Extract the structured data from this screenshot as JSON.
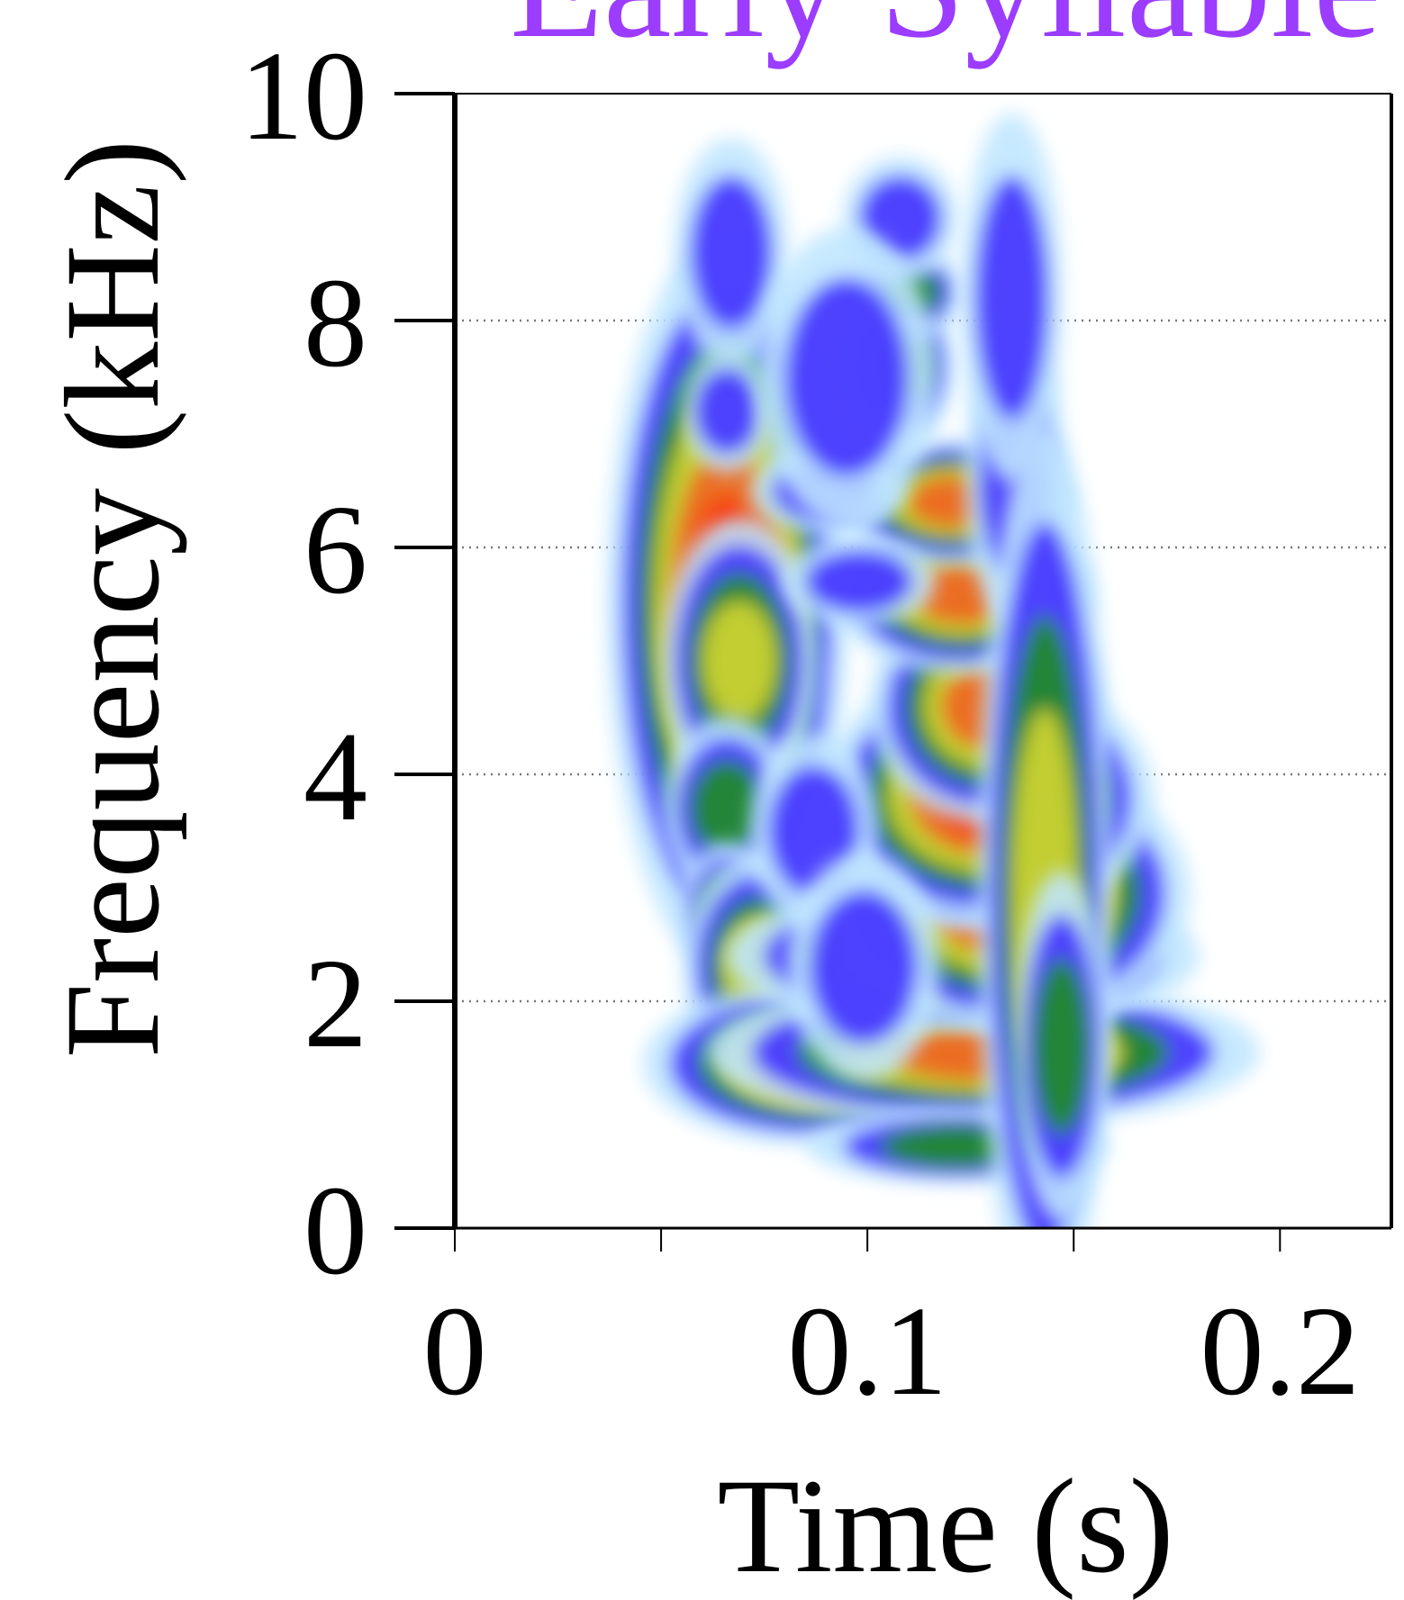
{
  "chart_data": {
    "type": "heatmap",
    "title": "Early Syllable",
    "title_color": "#9b3cff",
    "xlabel": "Time (s)",
    "ylabel": "Frequency (kHz)",
    "xlim": [
      0,
      0.227
    ],
    "ylim": [
      0,
      10
    ],
    "x_ticks": [
      {
        "value": 0,
        "label": "0"
      },
      {
        "value": 0.05,
        "label": ""
      },
      {
        "value": 0.1,
        "label": "0.1"
      },
      {
        "value": 0.15,
        "label": ""
      },
      {
        "value": 0.2,
        "label": "0.2"
      }
    ],
    "y_ticks": [
      {
        "value": 0,
        "label": "0"
      },
      {
        "value": 2,
        "label": "2"
      },
      {
        "value": 4,
        "label": "4"
      },
      {
        "value": 6,
        "label": "6"
      },
      {
        "value": 8,
        "label": "8"
      },
      {
        "value": 10,
        "label": "10"
      }
    ],
    "grid": {
      "y": true,
      "x": false,
      "style": "dotted"
    },
    "colormap": [
      "#ffffff",
      "#bfe6ff",
      "#3d2bff",
      "#1e8f1e",
      "#d8d830",
      "#f06020",
      "#ff2000"
    ],
    "blobs": [
      {
        "t": 0.066,
        "f": 5.5,
        "dt": 0.007,
        "df": 0.85,
        "i": 0.95
      },
      {
        "t": 0.069,
        "f": 5.0,
        "dt": 0.006,
        "df": 0.45,
        "i": 0.7
      },
      {
        "t": 0.066,
        "f": 3.7,
        "dt": 0.006,
        "df": 0.35,
        "i": 0.55
      },
      {
        "t": 0.066,
        "f": 2.8,
        "dt": 0.004,
        "df": 0.25,
        "i": 0.45
      },
      {
        "t": 0.074,
        "f": 2.3,
        "dt": 0.006,
        "df": 0.35,
        "i": 0.7
      },
      {
        "t": 0.087,
        "f": 1.45,
        "dt": 0.012,
        "df": 0.2,
        "i": 0.85
      },
      {
        "t": 0.128,
        "f": 1.55,
        "dt": 0.02,
        "df": 0.18,
        "i": 0.85
      },
      {
        "t": 0.122,
        "f": 0.72,
        "dt": 0.016,
        "df": 0.12,
        "i": 0.5
      },
      {
        "t": 0.123,
        "f": 2.4,
        "dt": 0.017,
        "df": 0.18,
        "i": 0.85
      },
      {
        "t": 0.134,
        "f": 2.95,
        "dt": 0.011,
        "df": 0.3,
        "i": 0.98
      },
      {
        "t": 0.125,
        "f": 3.3,
        "dt": 0.008,
        "df": 0.22,
        "i": 0.7
      },
      {
        "t": 0.129,
        "f": 3.8,
        "dt": 0.01,
        "df": 0.28,
        "i": 0.95
      },
      {
        "t": 0.129,
        "f": 4.6,
        "dt": 0.008,
        "df": 0.3,
        "i": 0.75
      },
      {
        "t": 0.123,
        "f": 5.6,
        "dt": 0.009,
        "df": 0.2,
        "i": 0.9
      },
      {
        "t": 0.121,
        "f": 6.4,
        "dt": 0.008,
        "df": 0.15,
        "i": 0.75
      },
      {
        "t": 0.108,
        "f": 7.6,
        "dt": 0.005,
        "df": 0.3,
        "i": 0.5
      },
      {
        "t": 0.11,
        "f": 8.25,
        "dt": 0.005,
        "df": 0.15,
        "i": 0.45
      },
      {
        "t": 0.108,
        "f": 8.9,
        "dt": 0.007,
        "df": 0.3,
        "i": 0.35
      },
      {
        "t": 0.067,
        "f": 8.6,
        "dt": 0.007,
        "df": 0.6,
        "i": 0.25
      },
      {
        "t": 0.066,
        "f": 7.2,
        "dt": 0.005,
        "df": 0.3,
        "i": 0.3
      },
      {
        "t": 0.09,
        "f": 6.5,
        "dt": 0.01,
        "df": 0.2,
        "i": 0.35
      },
      {
        "t": 0.095,
        "f": 7.5,
        "dt": 0.012,
        "df": 0.8,
        "i": 0.2
      },
      {
        "t": 0.136,
        "f": 6.6,
        "dt": 0.006,
        "df": 0.8,
        "i": 0.35
      },
      {
        "t": 0.135,
        "f": 8.2,
        "dt": 0.006,
        "df": 1.0,
        "i": 0.25
      },
      {
        "t": 0.143,
        "f": 3.0,
        "dt": 0.005,
        "df": 1.5,
        "i": 0.6
      },
      {
        "t": 0.147,
        "f": 1.6,
        "dt": 0.004,
        "df": 0.7,
        "i": 0.55
      },
      {
        "t": 0.087,
        "f": 3.5,
        "dt": 0.008,
        "df": 0.5,
        "i": 0.3
      },
      {
        "t": 0.098,
        "f": 5.7,
        "dt": 0.01,
        "df": 0.2,
        "i": 0.4
      },
      {
        "t": 0.099,
        "f": 2.3,
        "dt": 0.01,
        "df": 0.6,
        "i": 0.3
      }
    ]
  }
}
